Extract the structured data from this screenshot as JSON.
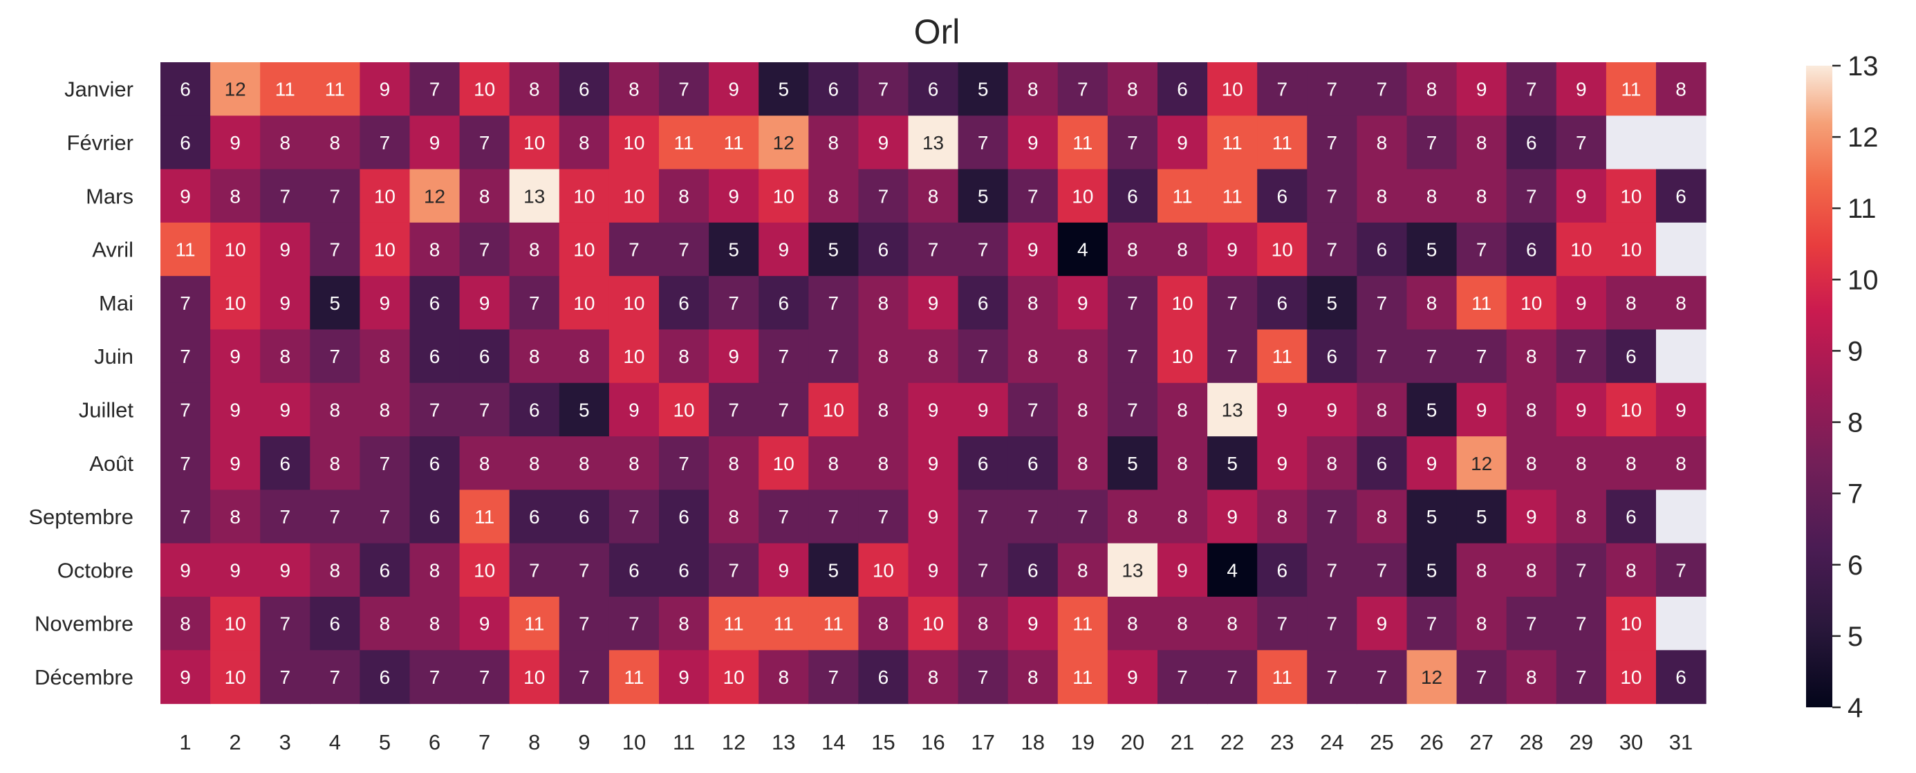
{
  "chart_data": {
    "type": "heatmap",
    "title": "Orl",
    "xlabel": "",
    "ylabel": "",
    "x_categories": [
      "1",
      "2",
      "3",
      "4",
      "5",
      "6",
      "7",
      "8",
      "9",
      "10",
      "11",
      "12",
      "13",
      "14",
      "15",
      "16",
      "17",
      "18",
      "19",
      "20",
      "21",
      "22",
      "23",
      "24",
      "25",
      "26",
      "27",
      "28",
      "29",
      "30",
      "31"
    ],
    "y_categories": [
      "Janvier",
      "Février",
      "Mars",
      "Avril",
      "Mai",
      "Juin",
      "Juillet",
      "Août",
      "Septembre",
      "Octobre",
      "Novembre",
      "Décembre"
    ],
    "values": [
      [
        6,
        12,
        11,
        11,
        9,
        7,
        10,
        8,
        6,
        8,
        7,
        9,
        5,
        6,
        7,
        6,
        5,
        8,
        7,
        8,
        6,
        10,
        7,
        7,
        7,
        8,
        9,
        7,
        9,
        11,
        8
      ],
      [
        6,
        9,
        8,
        8,
        7,
        9,
        7,
        10,
        8,
        10,
        11,
        11,
        12,
        8,
        9,
        13,
        7,
        9,
        11,
        7,
        9,
        11,
        11,
        7,
        8,
        7,
        8,
        6,
        7,
        null,
        null
      ],
      [
        9,
        8,
        7,
        7,
        10,
        12,
        8,
        13,
        10,
        10,
        8,
        9,
        10,
        8,
        7,
        8,
        5,
        7,
        10,
        6,
        11,
        11,
        6,
        7,
        8,
        8,
        8,
        7,
        9,
        10,
        6
      ],
      [
        11,
        10,
        9,
        7,
        10,
        8,
        7,
        8,
        10,
        7,
        7,
        5,
        9,
        5,
        6,
        7,
        7,
        9,
        4,
        8,
        8,
        9,
        10,
        7,
        6,
        5,
        7,
        6,
        10,
        10,
        null
      ],
      [
        7,
        10,
        9,
        5,
        9,
        6,
        9,
        7,
        10,
        10,
        6,
        7,
        6,
        7,
        8,
        9,
        6,
        8,
        9,
        7,
        10,
        7,
        6,
        5,
        7,
        8,
        11,
        10,
        9,
        8,
        8
      ],
      [
        7,
        9,
        8,
        7,
        8,
        6,
        6,
        8,
        8,
        10,
        8,
        9,
        7,
        7,
        8,
        8,
        7,
        8,
        8,
        7,
        10,
        7,
        11,
        6,
        7,
        7,
        7,
        8,
        7,
        6,
        null
      ],
      [
        7,
        9,
        9,
        8,
        8,
        7,
        7,
        6,
        5,
        9,
        10,
        7,
        7,
        10,
        8,
        9,
        9,
        7,
        8,
        7,
        8,
        13,
        9,
        9,
        8,
        5,
        9,
        8,
        9,
        10,
        9
      ],
      [
        7,
        9,
        6,
        8,
        7,
        6,
        8,
        8,
        8,
        8,
        7,
        8,
        10,
        8,
        8,
        9,
        6,
        6,
        8,
        5,
        8,
        5,
        9,
        8,
        6,
        9,
        12,
        8,
        8,
        8,
        8
      ],
      [
        7,
        8,
        7,
        7,
        7,
        6,
        11,
        6,
        6,
        7,
        6,
        8,
        7,
        7,
        7,
        9,
        7,
        7,
        7,
        8,
        8,
        9,
        8,
        7,
        8,
        5,
        5,
        9,
        8,
        6,
        null
      ],
      [
        9,
        9,
        9,
        8,
        6,
        8,
        10,
        7,
        7,
        6,
        6,
        7,
        9,
        5,
        10,
        9,
        7,
        6,
        8,
        13,
        9,
        4,
        6,
        7,
        7,
        5,
        8,
        8,
        7,
        8,
        7
      ],
      [
        8,
        10,
        7,
        6,
        8,
        8,
        9,
        11,
        7,
        7,
        8,
        11,
        11,
        11,
        8,
        10,
        8,
        9,
        11,
        8,
        8,
        8,
        7,
        7,
        9,
        7,
        8,
        7,
        7,
        10,
        null
      ],
      [
        9,
        10,
        7,
        7,
        6,
        7,
        7,
        10,
        7,
        11,
        9,
        10,
        8,
        7,
        6,
        8,
        7,
        8,
        11,
        9,
        7,
        7,
        11,
        7,
        7,
        12,
        7,
        8,
        7,
        10,
        6
      ]
    ],
    "colorbar": {
      "min": 4,
      "max": 13,
      "ticks": [
        "4",
        "5",
        "6",
        "7",
        "8",
        "9",
        "10",
        "11",
        "12",
        "13"
      ],
      "colormap": "rocket"
    },
    "missing_color": "#eaeaf2",
    "annotated": true,
    "grid": false
  }
}
